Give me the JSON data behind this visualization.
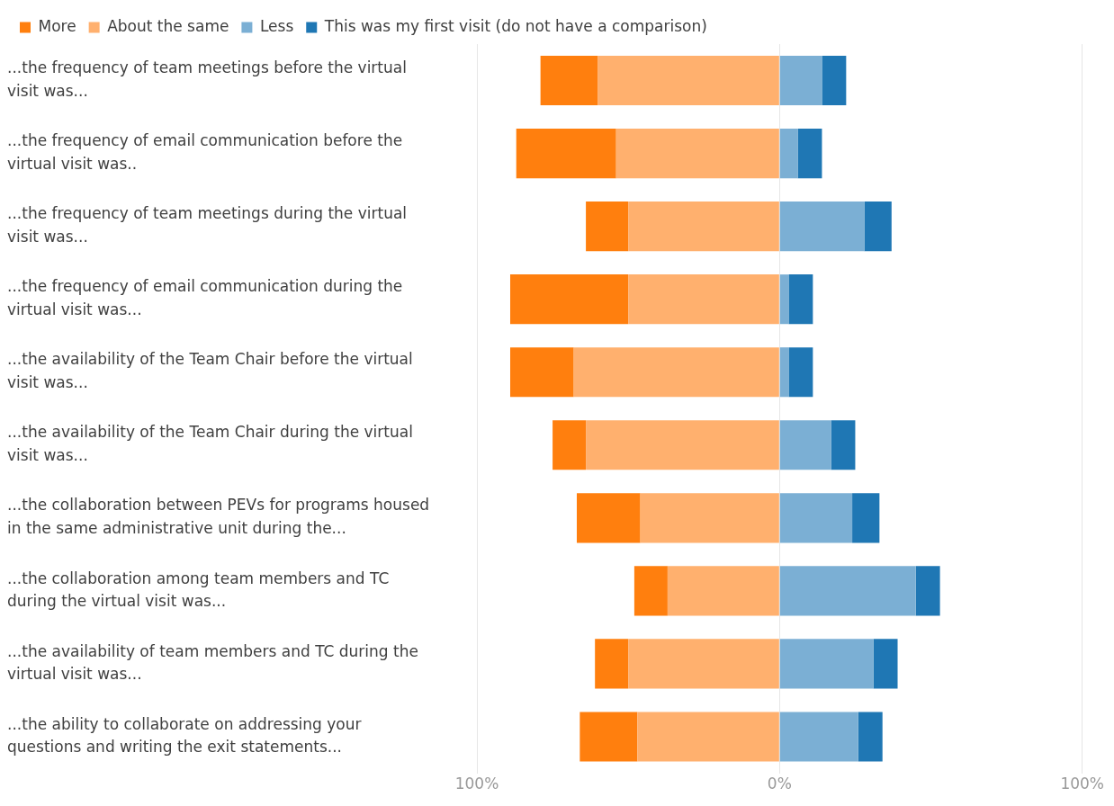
{
  "chart_data": {
    "type": "bar",
    "orientation": "horizontal",
    "stacked": true,
    "legend": "top left",
    "grid": "x",
    "categories": [
      "...the frequency of team meetings before the virtual visit was...",
      "...the frequency of email communication before the virtual visit was..",
      "...the frequency of team meetings during the virtual visit was...",
      "...the frequency of email communication during the virtual visit was...",
      "...the availability of the Team Chair before the virtual visit was...",
      "...the availability of the Team Chair during the virtual visit was...",
      "...the collaboration between PEVs for programs housed in the same administrative unit during the...",
      "...the collaboration among team members and TC during the virtual visit was...",
      "...the availability of team members and TC during the virtual visit was...",
      "...the ability to collaborate on addressing your questions and writing the exit statements..."
    ],
    "series": [
      {
        "name": "More",
        "color": "#ff7f0e",
        "values": [
          -19,
          -33,
          -14,
          -39,
          -21,
          -11,
          -21,
          -11,
          -11,
          -19
        ]
      },
      {
        "name": "About the same",
        "color": "#ffb06e",
        "values": [
          -60,
          -54,
          -50,
          -50,
          -68,
          -64,
          -46,
          -37,
          -50,
          -47
        ]
      },
      {
        "name": "Less",
        "color": "#7bafd4",
        "values": [
          14,
          6,
          28,
          3,
          3,
          17,
          24,
          45,
          31,
          26
        ]
      },
      {
        "name": "This was my first visit (do not have a comparison)",
        "color": "#1f77b4",
        "values": [
          8,
          8,
          9,
          8,
          8,
          8,
          9,
          8,
          8,
          8
        ]
      }
    ],
    "xlim": [
      -100,
      100
    ],
    "xticks": [
      {
        "value": -100,
        "label": "100%"
      },
      {
        "value": 0,
        "label": "0%"
      },
      {
        "value": 100,
        "label": "100%"
      }
    ]
  }
}
